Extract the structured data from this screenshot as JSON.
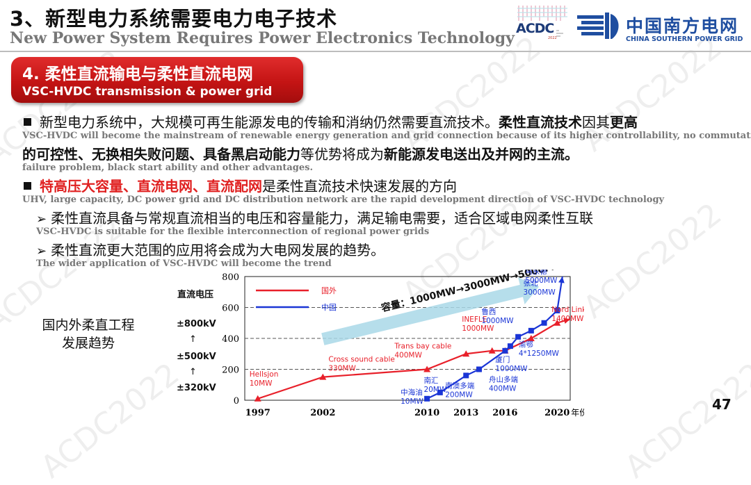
{
  "header": {
    "title_cn": "3、新型电力系统需要电力电子技术",
    "title_en": "New Power System Requires Power Electronics Technology",
    "acdc_logo_text": "ACDC",
    "acdc_year": "2022",
    "csg_name_cn": "中国南方电网",
    "csg_name_en": "CHINA SOUTHERN POWER GRID"
  },
  "section": {
    "title_cn": "4. 柔性直流输电与柔性直流电网",
    "title_en": "VSC-HVDC transmission & power grid"
  },
  "watermark": "ACDC2022",
  "bullets": {
    "b1_cn_a": "新型电力系统中，大规模可再生能源发电的传输和消纳仍然需要直流技术。",
    "b1_cn_b": "柔性直流技术",
    "b1_cn_c": "因其",
    "b1_cn_d": "更高",
    "b1_en_1": "VSC-HVDC will become the mainstream of renewable energy generation and grid connection because of its higher controllability, no commutation",
    "b1_cn2_a": "的可控性、无换相失败问题、具备黑启动能力",
    "b1_cn2_b": "等优势将成为",
    "b1_cn2_c": "新能源发电送出及并网的主流。",
    "b1_en_2": "failure problem, black start ability and other advantages.",
    "b2_cn_red": "特高压大容量、直流电网、直流配网",
    "b2_cn_rest": "是柔性直流技术快速发展的方向",
    "b2_en": "UHV, large capacity, DC power grid and DC distribution network are the rapid development direction of VSC-HVDC technology",
    "s1_cn": "柔性直流具备与常规直流相当的电压和容量能力，满足输电需要，适合区域电网柔性互联",
    "s1_en": "VSC-HVDC is suitable for the flexible interconnection of regional power grids",
    "s2_cn": "柔性直流更大范围的应用将会成为大电网发展的趋势。",
    "s2_en": "The wider application of VSC-HVDC will become the trend"
  },
  "side": {
    "title_line1": "国内外柔直工程",
    "title_line2": "发展趋势",
    "voltage_label": "直流电压",
    "levels": [
      "±800kV",
      "↑",
      "±500kV",
      "↑",
      "±320kV"
    ]
  },
  "page_number": "47",
  "chart_data": {
    "type": "line",
    "xlim": [
      1996,
      2021
    ],
    "ylim": [
      0,
      800
    ],
    "x_ticks": [
      "1997",
      "2002",
      "2010",
      "2013",
      "2016",
      "2020"
    ],
    "x_unit": "年份",
    "y_ticks": [
      "0",
      "200",
      "400",
      "600",
      "800"
    ],
    "grid": "dashed horizontal at 200/400/600",
    "legend": "top-left",
    "capacity_label": "容量：1000MW→3000MW→5000MW",
    "colors": {
      "foreign": "#e8202a",
      "domestic": "#1a35d6",
      "arrow": "#a9d8e8"
    },
    "series": [
      {
        "name": "国外",
        "x": [
          1997,
          2002,
          2010,
          2013,
          2015,
          2016,
          2018,
          2020,
          2021
        ],
        "values": [
          10,
          150,
          200,
          300,
          320,
          320,
          400,
          500,
          525
        ]
      },
      {
        "name": "中国",
        "x": [
          2010,
          2011,
          2013,
          2014,
          2016,
          2016.4,
          2017,
          2018,
          2019,
          2020,
          2020.4
        ],
        "values": [
          10,
          50,
          160,
          200,
          320,
          350,
          410,
          450,
          500,
          580,
          800
        ]
      }
    ],
    "annotations": [
      {
        "text": "Hellsjon",
        "sub": "10MW",
        "color": "foreign",
        "x": 1997,
        "y": 10
      },
      {
        "text": "Cross sound cable",
        "sub": "330MW",
        "color": "foreign",
        "x": 2002,
        "y": 150
      },
      {
        "text": "Trans bay cable",
        "sub": "400MW",
        "color": "foreign",
        "x": 2009,
        "y": 200
      },
      {
        "text": "INEFLE",
        "sub": "1000MW",
        "color": "foreign",
        "x": 2013,
        "y": 320
      },
      {
        "text": "Nord Link",
        "sub": "1400MW",
        "color": "foreign",
        "x": 2020,
        "y": 500
      },
      {
        "text": "中海油",
        "sub": "10MW",
        "color": "domestic",
        "x": 2010,
        "y": 10
      },
      {
        "text": "南汇",
        "sub": "20MW",
        "color": "domestic",
        "x": 2010.5,
        "y": 50
      },
      {
        "text": "南澳多端",
        "sub": "200MW",
        "color": "domestic",
        "x": 2013,
        "y": 160
      },
      {
        "text": "舟山多端",
        "sub": "400MW",
        "color": "domestic",
        "x": 2014,
        "y": 200
      },
      {
        "text": "厦门",
        "sub": "1000MW",
        "color": "domestic",
        "x": 2016,
        "y": 320
      },
      {
        "text": "鲁西",
        "sub": "1000MW",
        "color": "domestic",
        "x": 2016,
        "y": 350
      },
      {
        "text": "渝鄂",
        "sub": "4*1250MW",
        "color": "domestic",
        "x": 2018,
        "y": 410
      },
      {
        "text": "张北",
        "sub": "3000MW",
        "color": "domestic",
        "x": 2019,
        "y": 500
      },
      {
        "text": "乌东德",
        "sub": "5000MW",
        "color": "domestic",
        "x": 2020,
        "y": 800
      }
    ]
  }
}
